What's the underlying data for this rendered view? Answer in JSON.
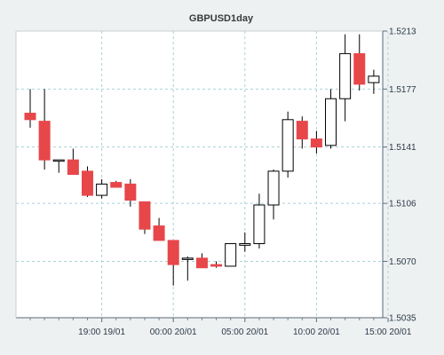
{
  "chart_data": {
    "type": "candlestick",
    "title": "GBPUSD1day",
    "xlabel": "",
    "ylabel": "",
    "ylim": [
      1.5035,
      1.5213
    ],
    "y_ticks": [
      "1.5213",
      "1.5177",
      "1.5141",
      "1.5106",
      "1.5070",
      "1.5035"
    ],
    "x_ticks": [
      {
        "label": "19:00 19/01",
        "index": 5
      },
      {
        "label": "00:00 20/01",
        "index": 10
      },
      {
        "label": "05:00 20/01",
        "index": 15
      },
      {
        "label": "10:00 20/01",
        "index": 20
      },
      {
        "label": "15:00 20/01",
        "index": 25
      }
    ],
    "grid": true,
    "up_color": "#ffffff",
    "down_color": "#e8474a",
    "candles": [
      {
        "open": 1.5162,
        "high": 1.5177,
        "low": 1.5153,
        "close": 1.5158
      },
      {
        "open": 1.5157,
        "high": 1.5177,
        "low": 1.5127,
        "close": 1.5133
      },
      {
        "open": 1.5133,
        "high": 1.5133,
        "low": 1.5125,
        "close": 1.5133
      },
      {
        "open": 1.5133,
        "high": 1.514,
        "low": 1.5124,
        "close": 1.5124
      },
      {
        "open": 1.5126,
        "high": 1.5129,
        "low": 1.511,
        "close": 1.5111
      },
      {
        "open": 1.5111,
        "high": 1.5121,
        "low": 1.5109,
        "close": 1.5118
      },
      {
        "open": 1.5119,
        "high": 1.512,
        "low": 1.5117,
        "close": 1.5116
      },
      {
        "open": 1.5118,
        "high": 1.5121,
        "low": 1.5104,
        "close": 1.5108
      },
      {
        "open": 1.5107,
        "high": 1.5107,
        "low": 1.5087,
        "close": 1.509
      },
      {
        "open": 1.5092,
        "high": 1.5097,
        "low": 1.5084,
        "close": 1.5083
      },
      {
        "open": 1.5083,
        "high": 1.5083,
        "low": 1.5055,
        "close": 1.5068
      },
      {
        "open": 1.5072,
        "high": 1.5073,
        "low": 1.5058,
        "close": 1.5072
      },
      {
        "open": 1.5072,
        "high": 1.5075,
        "low": 1.5066,
        "close": 1.5066
      },
      {
        "open": 1.5068,
        "high": 1.507,
        "low": 1.5066,
        "close": 1.5067
      },
      {
        "open": 1.5067,
        "high": 1.5081,
        "low": 1.5067,
        "close": 1.5081
      },
      {
        "open": 1.508,
        "high": 1.5088,
        "low": 1.5076,
        "close": 1.5081
      },
      {
        "open": 1.5081,
        "high": 1.5112,
        "low": 1.5078,
        "close": 1.5105
      },
      {
        "open": 1.5105,
        "high": 1.5127,
        "low": 1.5096,
        "close": 1.5126
      },
      {
        "open": 1.5126,
        "high": 1.5163,
        "low": 1.5122,
        "close": 1.5158
      },
      {
        "open": 1.5157,
        "high": 1.516,
        "low": 1.514,
        "close": 1.5146
      },
      {
        "open": 1.5146,
        "high": 1.5151,
        "low": 1.5137,
        "close": 1.5141
      },
      {
        "open": 1.5142,
        "high": 1.5177,
        "low": 1.514,
        "close": 1.5171
      },
      {
        "open": 1.5171,
        "high": 1.5211,
        "low": 1.5157,
        "close": 1.5199
      },
      {
        "open": 1.5199,
        "high": 1.5211,
        "low": 1.5176,
        "close": 1.518
      },
      {
        "open": 1.5181,
        "high": 1.5189,
        "low": 1.5174,
        "close": 1.5185
      }
    ]
  }
}
